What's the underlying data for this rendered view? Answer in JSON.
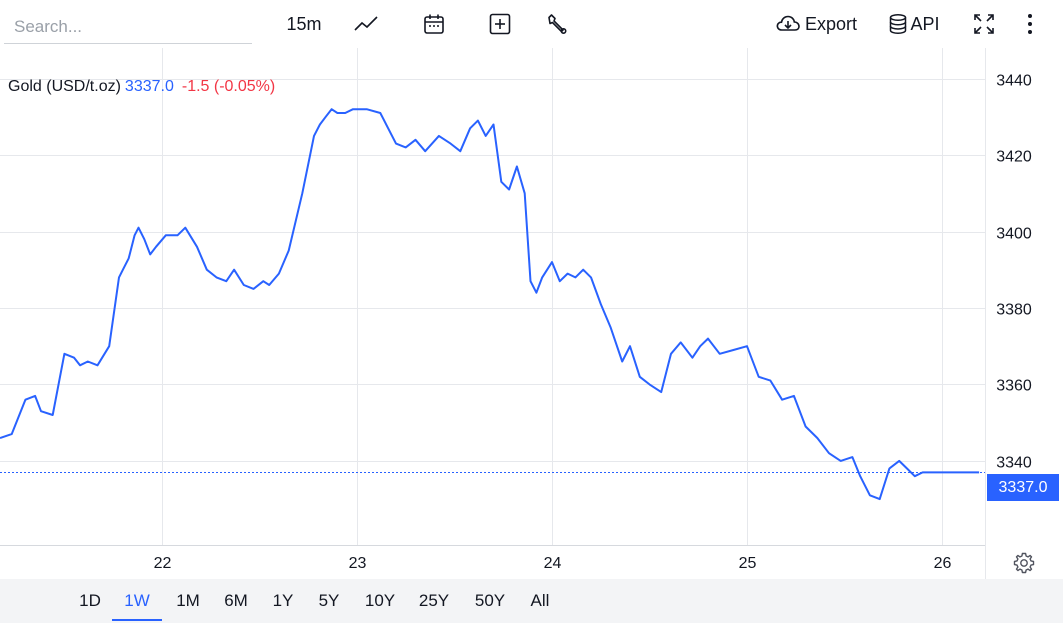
{
  "search": {
    "placeholder": "Search..."
  },
  "toolbar": {
    "interval": "15m",
    "export_label": "Export",
    "api_label": "API",
    "icons": [
      "chart-type-line-icon",
      "calendar-icon",
      "add-compare-icon",
      "wrench-icon",
      "cloud-download-icon",
      "database-icon",
      "fullscreen-icon",
      "more-vertical-icon"
    ]
  },
  "legend": {
    "symbol": "Gold (USD/t.oz)",
    "price": "3337.0",
    "change": "-1.5 (-0.05%)"
  },
  "last_price_label": "3337.0",
  "settings_icon": "gear-icon",
  "colors": {
    "series": "#2962ff",
    "negative": "#f23645",
    "grid": "#e6e8ec"
  },
  "ranges": [
    "1D",
    "1W",
    "1M",
    "6M",
    "1Y",
    "5Y",
    "10Y",
    "25Y",
    "50Y",
    "All"
  ],
  "active_range": "1W",
  "chart_data": {
    "type": "line",
    "title": "Gold (USD/t.oz)",
    "xlabel": "",
    "ylabel": "",
    "x_ticks": [
      22,
      23,
      24,
      25,
      26
    ],
    "y_ticks": [
      3340,
      3360,
      3380,
      3400,
      3420,
      3440
    ],
    "xlim": [
      21.17,
      26.22
    ],
    "ylim": [
      3318,
      3448
    ],
    "grid": true,
    "last_value": 3337.0,
    "series": [
      {
        "name": "Gold (USD/t.oz)",
        "x": [
          21.17,
          21.23,
          21.3,
          21.35,
          21.38,
          21.44,
          21.5,
          21.55,
          21.58,
          21.62,
          21.67,
          21.73,
          21.78,
          21.8,
          21.83,
          21.86,
          21.88,
          21.91,
          21.94,
          21.97,
          22.02,
          22.08,
          22.12,
          22.18,
          22.23,
          22.28,
          22.33,
          22.37,
          22.42,
          22.47,
          22.52,
          22.55,
          22.6,
          22.65,
          22.72,
          22.78,
          22.81,
          22.84,
          22.87,
          22.9,
          22.94,
          22.98,
          23.05,
          23.12,
          23.2,
          23.25,
          23.3,
          23.35,
          23.42,
          23.48,
          23.53,
          23.58,
          23.62,
          23.66,
          23.7,
          23.74,
          23.78,
          23.82,
          23.86,
          23.89,
          23.92,
          23.95,
          24.0,
          24.04,
          24.08,
          24.12,
          24.16,
          24.2,
          24.25,
          24.3,
          24.36,
          24.4,
          24.45,
          24.5,
          24.56,
          24.61,
          24.66,
          24.72,
          24.76,
          24.8,
          24.86,
          24.93,
          25.0,
          25.06,
          25.12,
          25.18,
          25.24,
          25.3,
          25.36,
          25.42,
          25.48,
          25.54,
          25.58,
          25.63,
          25.68,
          25.73,
          25.78,
          25.82,
          25.86,
          25.9,
          25.95,
          26.0,
          26.04,
          26.08,
          26.12,
          26.16,
          26.19
        ],
        "y": [
          3346,
          3347,
          3356,
          3357,
          3353,
          3352,
          3368,
          3367,
          3365,
          3366,
          3365,
          3370,
          3388,
          3390,
          3393,
          3399,
          3401,
          3398,
          3394,
          3396,
          3399,
          3399,
          3401,
          3396,
          3390,
          3388,
          3387,
          3390,
          3386,
          3385,
          3387,
          3386,
          3389,
          3395,
          3410,
          3425,
          3428,
          3430,
          3432,
          3431,
          3431,
          3432,
          3432,
          3431,
          3423,
          3422,
          3424,
          3421,
          3425,
          3423,
          3421,
          3427,
          3429,
          3425,
          3428,
          3413,
          3411,
          3417,
          3410,
          3387,
          3384,
          3388,
          3392,
          3387,
          3389,
          3388,
          3390,
          3388,
          3381,
          3375,
          3366,
          3370,
          3362,
          3360,
          3358,
          3368,
          3371,
          3367,
          3370,
          3372,
          3368,
          3369,
          3370,
          3362,
          3361,
          3356,
          3357,
          3349,
          3346,
          3342,
          3340,
          3341,
          3336,
          3331,
          3330,
          3338,
          3340,
          3338,
          3336,
          3337,
          3337,
          3337,
          3337,
          3337,
          3337,
          3337,
          3337
        ],
        "color": "#2962ff"
      }
    ]
  }
}
